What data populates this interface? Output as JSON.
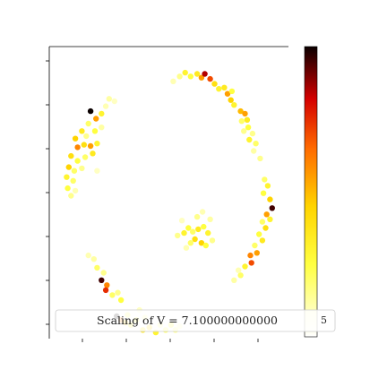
{
  "chart_data": {
    "type": "scatter",
    "title": "",
    "xlabel": "",
    "ylabel": "",
    "xlim": [
      -1.1,
      1.1
    ],
    "ylim": [
      -1.25,
      1.1
    ],
    "grid": false,
    "colormap": "hot_r",
    "clim": [
      0,
      1
    ],
    "legend": {
      "placement": "bottom",
      "label": "Scaling of V = 7.100000000000",
      "colorbar_tick_label": "5"
    },
    "points": [
      {
        "x": -0.72,
        "y": 0.58,
        "v": 1.0
      },
      {
        "x": -0.67,
        "y": 0.52,
        "v": 0.55
      },
      {
        "x": -0.62,
        "y": 0.56,
        "v": 0.3
      },
      {
        "x": -0.74,
        "y": 0.48,
        "v": 0.2
      },
      {
        "x": -0.8,
        "y": 0.42,
        "v": 0.35
      },
      {
        "x": -0.76,
        "y": 0.38,
        "v": 0.15
      },
      {
        "x": -0.68,
        "y": 0.42,
        "v": 0.25
      },
      {
        "x": -0.86,
        "y": 0.36,
        "v": 0.45
      },
      {
        "x": -0.84,
        "y": 0.29,
        "v": 0.6
      },
      {
        "x": -0.78,
        "y": 0.31,
        "v": 0.4
      },
      {
        "x": -0.72,
        "y": 0.3,
        "v": 0.55
      },
      {
        "x": -0.66,
        "y": 0.32,
        "v": 0.3
      },
      {
        "x": -0.9,
        "y": 0.22,
        "v": 0.4
      },
      {
        "x": -0.84,
        "y": 0.18,
        "v": 0.25
      },
      {
        "x": -0.77,
        "y": 0.21,
        "v": 0.2
      },
      {
        "x": -0.7,
        "y": 0.24,
        "v": 0.35
      },
      {
        "x": -0.92,
        "y": 0.13,
        "v": 0.45
      },
      {
        "x": -0.87,
        "y": 0.1,
        "v": 0.2
      },
      {
        "x": -0.8,
        "y": 0.12,
        "v": 0.15
      },
      {
        "x": -0.94,
        "y": 0.05,
        "v": 0.3
      },
      {
        "x": -0.88,
        "y": 0.02,
        "v": 0.2
      },
      {
        "x": -0.93,
        "y": -0.04,
        "v": 0.25
      },
      {
        "x": -0.9,
        "y": -0.1,
        "v": 0.15
      },
      {
        "x": -0.86,
        "y": -0.06,
        "v": 0.1
      },
      {
        "x": -0.66,
        "y": 0.1,
        "v": 0.08
      },
      {
        "x": -0.62,
        "y": 0.45,
        "v": 0.12
      },
      {
        "x": -0.58,
        "y": 0.62,
        "v": 0.1
      },
      {
        "x": -0.55,
        "y": 0.68,
        "v": 0.12
      },
      {
        "x": -0.5,
        "y": 0.66,
        "v": 0.08
      },
      {
        "x": 0.04,
        "y": 0.82,
        "v": 0.1
      },
      {
        "x": 0.1,
        "y": 0.86,
        "v": 0.15
      },
      {
        "x": 0.15,
        "y": 0.89,
        "v": 0.3
      },
      {
        "x": 0.2,
        "y": 0.86,
        "v": 0.25
      },
      {
        "x": 0.26,
        "y": 0.88,
        "v": 0.35
      },
      {
        "x": 0.3,
        "y": 0.85,
        "v": 0.55
      },
      {
        "x": 0.33,
        "y": 0.88,
        "v": 0.85
      },
      {
        "x": 0.38,
        "y": 0.84,
        "v": 0.7
      },
      {
        "x": 0.42,
        "y": 0.8,
        "v": 0.4
      },
      {
        "x": 0.46,
        "y": 0.76,
        "v": 0.3
      },
      {
        "x": 0.51,
        "y": 0.77,
        "v": 0.35
      },
      {
        "x": 0.54,
        "y": 0.72,
        "v": 0.55
      },
      {
        "x": 0.58,
        "y": 0.74,
        "v": 0.25
      },
      {
        "x": 0.57,
        "y": 0.67,
        "v": 0.45
      },
      {
        "x": 0.6,
        "y": 0.63,
        "v": 0.3
      },
      {
        "x": 0.66,
        "y": 0.58,
        "v": 0.5
      },
      {
        "x": 0.7,
        "y": 0.56,
        "v": 0.55
      },
      {
        "x": 0.72,
        "y": 0.51,
        "v": 0.35
      },
      {
        "x": 0.67,
        "y": 0.5,
        "v": 0.2
      },
      {
        "x": 0.73,
        "y": 0.45,
        "v": 0.25
      },
      {
        "x": 0.69,
        "y": 0.42,
        "v": 0.15
      },
      {
        "x": 0.77,
        "y": 0.4,
        "v": 0.15
      },
      {
        "x": 0.74,
        "y": 0.35,
        "v": 0.3
      },
      {
        "x": 0.8,
        "y": 0.32,
        "v": 0.2
      },
      {
        "x": 0.78,
        "y": 0.26,
        "v": 0.12
      },
      {
        "x": 0.84,
        "y": 0.2,
        "v": 0.15
      },
      {
        "x": 0.88,
        "y": 0.03,
        "v": 0.2
      },
      {
        "x": 0.91,
        "y": -0.02,
        "v": 0.3
      },
      {
        "x": 0.87,
        "y": -0.08,
        "v": 0.25
      },
      {
        "x": 0.93,
        "y": -0.13,
        "v": 0.45
      },
      {
        "x": 0.95,
        "y": -0.2,
        "v": 0.95
      },
      {
        "x": 0.9,
        "y": -0.25,
        "v": 0.55
      },
      {
        "x": 0.93,
        "y": -0.29,
        "v": 0.3
      },
      {
        "x": 0.86,
        "y": -0.31,
        "v": 0.2
      },
      {
        "x": 0.89,
        "y": -0.36,
        "v": 0.4
      },
      {
        "x": 0.83,
        "y": -0.41,
        "v": 0.25
      },
      {
        "x": 0.86,
        "y": -0.46,
        "v": 0.35
      },
      {
        "x": 0.79,
        "y": -0.5,
        "v": 0.2
      },
      {
        "x": 0.81,
        "y": -0.56,
        "v": 0.55
      },
      {
        "x": 0.75,
        "y": -0.58,
        "v": 0.6
      },
      {
        "x": 0.76,
        "y": -0.64,
        "v": 0.7
      },
      {
        "x": 0.7,
        "y": -0.67,
        "v": 0.3
      },
      {
        "x": 0.66,
        "y": -0.74,
        "v": 0.2
      },
      {
        "x": 0.6,
        "y": -0.78,
        "v": 0.12
      },
      {
        "x": 0.64,
        "y": -0.7,
        "v": 0.1
      },
      {
        "x": 0.08,
        "y": -0.42,
        "v": 0.15
      },
      {
        "x": 0.14,
        "y": -0.4,
        "v": 0.3
      },
      {
        "x": 0.18,
        "y": -0.36,
        "v": 0.25
      },
      {
        "x": 0.22,
        "y": -0.39,
        "v": 0.2
      },
      {
        "x": 0.27,
        "y": -0.37,
        "v": 0.35
      },
      {
        "x": 0.32,
        "y": -0.35,
        "v": 0.25
      },
      {
        "x": 0.36,
        "y": -0.4,
        "v": 0.3
      },
      {
        "x": 0.24,
        "y": -0.45,
        "v": 0.4
      },
      {
        "x": 0.3,
        "y": -0.48,
        "v": 0.45
      },
      {
        "x": 0.2,
        "y": -0.48,
        "v": 0.2
      },
      {
        "x": 0.34,
        "y": -0.5,
        "v": 0.25
      },
      {
        "x": 0.4,
        "y": -0.46,
        "v": 0.15
      },
      {
        "x": 0.26,
        "y": -0.27,
        "v": 0.15
      },
      {
        "x": 0.31,
        "y": -0.23,
        "v": 0.1
      },
      {
        "x": 0.38,
        "y": -0.29,
        "v": 0.12
      },
      {
        "x": 0.12,
        "y": -0.3,
        "v": 0.08
      },
      {
        "x": 0.16,
        "y": -0.52,
        "v": 0.1
      },
      {
        "x": -0.74,
        "y": -0.58,
        "v": 0.1
      },
      {
        "x": -0.69,
        "y": -0.61,
        "v": 0.12
      },
      {
        "x": -0.66,
        "y": -0.68,
        "v": 0.2
      },
      {
        "x": -0.6,
        "y": -0.72,
        "v": 0.15
      },
      {
        "x": -0.62,
        "y": -0.78,
        "v": 0.95
      },
      {
        "x": -0.57,
        "y": -0.82,
        "v": 0.6
      },
      {
        "x": -0.58,
        "y": -0.86,
        "v": 0.75
      },
      {
        "x": -0.52,
        "y": -0.9,
        "v": 0.2
      },
      {
        "x": -0.47,
        "y": -0.88,
        "v": 0.15
      },
      {
        "x": -0.44,
        "y": -0.94,
        "v": 0.25
      },
      {
        "x": -0.48,
        "y": -1.07,
        "v": 1.0
      },
      {
        "x": -0.44,
        "y": -1.1,
        "v": 0.6
      },
      {
        "x": -0.4,
        "y": -1.12,
        "v": 0.45
      },
      {
        "x": -0.35,
        "y": -1.14,
        "v": 0.3
      },
      {
        "x": -0.38,
        "y": -1.06,
        "v": 0.2
      },
      {
        "x": -0.3,
        "y": -1.1,
        "v": 0.25
      },
      {
        "x": -0.24,
        "y": -1.18,
        "v": 0.35
      },
      {
        "x": -0.18,
        "y": -1.16,
        "v": 0.4
      },
      {
        "x": -0.12,
        "y": -1.2,
        "v": 0.3
      },
      {
        "x": -0.08,
        "y": -1.14,
        "v": 0.15
      },
      {
        "x": -0.03,
        "y": -1.18,
        "v": 0.2
      },
      {
        "x": 0.02,
        "y": -1.14,
        "v": 0.25
      },
      {
        "x": 0.06,
        "y": -1.18,
        "v": 0.15
      },
      {
        "x": 0.1,
        "y": -1.15,
        "v": 0.1
      },
      {
        "x": -0.22,
        "y": -1.08,
        "v": 0.12
      },
      {
        "x": -0.27,
        "y": -1.02,
        "v": 0.08
      }
    ]
  }
}
